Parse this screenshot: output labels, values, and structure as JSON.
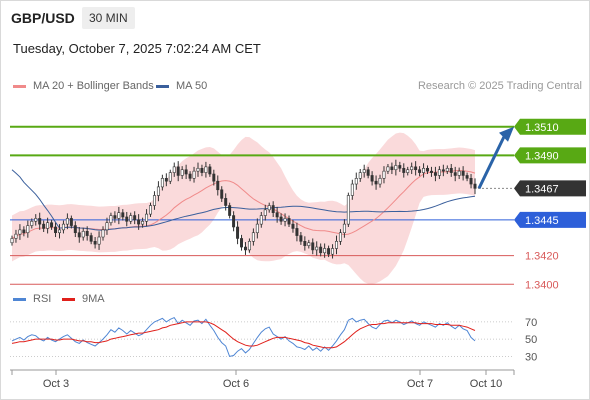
{
  "header": {
    "pair": "GBP/USD",
    "timeframe": "30 MIN",
    "timestamp": "Tuesday, October 7, 2025 7:02:24 AM CET",
    "credit": "Research © 2025 Trading Central"
  },
  "colors": {
    "resistance": "#58a914",
    "support_pivot": "#2d5fd9",
    "support": "#d85a5a",
    "current": "#333333",
    "arrow": "#2a63a8",
    "bollinger": "#fadadb",
    "ma20": "#f08a8a",
    "ma50": "#3a5f9c",
    "rsi": "#4f86d4",
    "rsi_ma": "#e0201b"
  },
  "chart_data": [
    {
      "type": "candlestick",
      "legend": [
        {
          "name": "MA 20 + Bollinger Bands",
          "color": "#f08a8a"
        },
        {
          "name": "MA 50",
          "color": "#3a5f9c"
        }
      ],
      "x_tick_labels": [
        "Oct 3",
        "Oct 6",
        "Oct 7",
        "Oct 10"
      ],
      "levels": [
        {
          "label": "1.3510",
          "value": 1.351,
          "kind": "resistance"
        },
        {
          "label": "1.3490",
          "value": 1.349,
          "kind": "resistance"
        },
        {
          "label": "1.3467",
          "value": 1.3467,
          "kind": "current"
        },
        {
          "label": "1.3445",
          "value": 1.3445,
          "kind": "pivot"
        },
        {
          "label": "1.3420",
          "value": 1.342,
          "kind": "support"
        },
        {
          "label": "1.3400",
          "value": 1.34,
          "kind": "support"
        }
      ],
      "ylim": [
        1.3396,
        1.3528
      ],
      "forecast_target": 1.351,
      "close_series": [
        1.3432,
        1.3435,
        1.3438,
        1.3436,
        1.3441,
        1.3444,
        1.3446,
        1.3442,
        1.3439,
        1.3443,
        1.344,
        1.3436,
        1.3438,
        1.3442,
        1.3446,
        1.3441,
        1.3436,
        1.3433,
        1.3437,
        1.3434,
        1.343,
        1.3428,
        1.3433,
        1.3438,
        1.3443,
        1.3448,
        1.3446,
        1.345,
        1.3447,
        1.3444,
        1.3448,
        1.3445,
        1.3442,
        1.3444,
        1.3449,
        1.3455,
        1.3462,
        1.3468,
        1.3474,
        1.3472,
        1.3478,
        1.3482,
        1.3476,
        1.348,
        1.3477,
        1.3474,
        1.3479,
        1.3481,
        1.3478,
        1.3482,
        1.3477,
        1.3472,
        1.3466,
        1.346,
        1.3455,
        1.3448,
        1.344,
        1.3432,
        1.3426,
        1.3424,
        1.343,
        1.3436,
        1.3442,
        1.3448,
        1.3452,
        1.3455,
        1.345,
        1.3447,
        1.3444,
        1.3446,
        1.3442,
        1.3439,
        1.3434,
        1.343,
        1.3427,
        1.3429,
        1.3424,
        1.3426,
        1.3422,
        1.3425,
        1.3421,
        1.3425,
        1.343,
        1.3436,
        1.3442,
        1.3462,
        1.347,
        1.3474,
        1.3478,
        1.348,
        1.3476,
        1.3472,
        1.347,
        1.3474,
        1.3479,
        1.3482,
        1.348,
        1.3483,
        1.3481,
        1.3478,
        1.348,
        1.3482,
        1.348,
        1.3478,
        1.3481,
        1.3479,
        1.3478,
        1.3476,
        1.348,
        1.3479,
        1.3481,
        1.3478,
        1.3476,
        1.3479,
        1.3476,
        1.3474,
        1.347,
        1.3467
      ]
    },
    {
      "type": "line",
      "legend": [
        {
          "name": "RSI",
          "color": "#4f86d4"
        },
        {
          "name": "9MA",
          "color": "#e0201b"
        }
      ],
      "y_tick_labels": [
        "70",
        "50",
        "30"
      ],
      "ylim": [
        20,
        78
      ],
      "rsi": [
        48,
        50,
        52,
        49,
        53,
        55,
        54,
        50,
        48,
        52,
        49,
        47,
        50,
        53,
        55,
        51,
        47,
        45,
        49,
        46,
        44,
        42,
        46,
        50,
        55,
        61,
        58,
        63,
        60,
        56,
        60,
        57,
        54,
        56,
        61,
        66,
        70,
        72,
        74,
        70,
        73,
        75,
        68,
        72,
        69,
        66,
        71,
        72,
        68,
        73,
        66,
        60,
        52,
        46,
        42,
        30,
        31,
        36,
        39,
        34,
        38,
        45,
        52,
        58,
        62,
        64,
        56,
        53,
        50,
        53,
        48,
        45,
        41,
        40,
        38,
        42,
        37,
        40,
        36,
        41,
        37,
        42,
        48,
        55,
        61,
        72,
        74,
        70,
        72,
        73,
        68,
        64,
        62,
        67,
        71,
        72,
        69,
        72,
        70,
        67,
        69,
        71,
        68,
        66,
        70,
        68,
        66,
        64,
        68,
        66,
        69,
        65,
        62,
        66,
        62,
        60,
        52,
        48
      ],
      "ma": [
        45,
        46,
        47,
        47,
        48,
        49,
        50,
        50,
        50,
        50,
        50,
        49,
        49,
        50,
        50,
        50,
        49,
        48,
        48,
        47,
        47,
        46,
        46,
        47,
        48,
        50,
        51,
        52,
        53,
        54,
        55,
        56,
        57,
        57,
        58,
        59,
        60,
        61,
        63,
        64,
        66,
        67,
        68,
        69,
        70,
        70,
        70,
        70,
        70,
        70,
        69,
        67,
        64,
        61,
        58,
        54,
        50,
        47,
        45,
        43,
        42,
        42,
        43,
        45,
        47,
        49,
        51,
        52,
        52,
        52,
        51,
        50,
        49,
        48,
        46,
        45,
        43,
        42,
        41,
        40,
        40,
        40,
        41,
        44,
        47,
        51,
        55,
        59,
        62,
        64,
        66,
        67,
        67,
        68,
        68,
        69,
        69,
        69,
        69,
        69,
        69,
        69,
        69,
        68,
        68,
        68,
        68,
        67,
        67,
        67,
        67,
        66,
        66,
        66,
        65,
        64,
        62,
        60
      ]
    }
  ]
}
